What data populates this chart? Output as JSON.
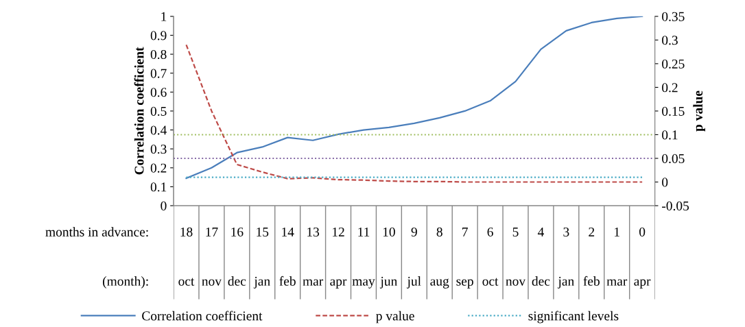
{
  "chart_data": {
    "type": "line",
    "categories": [
      "18\noct",
      "17\nnov",
      "16\ndec",
      "15\njan",
      "14\nfeb",
      "13\nmar",
      "12\napr",
      "11\nmay",
      "10\njun",
      "9\njul",
      "8\naug",
      "7\nsep",
      "6\noct",
      "5\nnov",
      "4\ndec",
      "3\njan",
      "2\nfeb",
      "1\nmar",
      "0\napr"
    ],
    "series": [
      {
        "name": "Correlation coefficient",
        "color": "#4a7ebb",
        "line_style": "solid",
        "values": [
          0.145,
          0.2,
          0.28,
          0.31,
          0.36,
          0.345,
          0.377,
          0.4,
          0.413,
          0.435,
          0.464,
          0.5,
          0.554,
          0.656,
          0.826,
          0.924,
          0.967,
          0.989,
          1.0
        ]
      },
      {
        "name": "p value",
        "color": "#be4b48",
        "line_style": "dashed",
        "axis": "y2",
        "values": [
          0.29,
          0.15,
          0.037,
          0.021,
          0.007,
          0.009,
          0.005,
          0.004,
          0.002,
          0.001,
          0.001,
          0.0,
          0.0,
          0.0,
          0.0,
          0.0,
          0.0,
          0.0,
          0.0
        ]
      },
      {
        "name": "significant levels",
        "color": "#4bacc6",
        "line_style": "dotted",
        "axis": "y2",
        "values": [
          0.01,
          0.01,
          0.01,
          0.01,
          0.01,
          0.01,
          0.01,
          0.01,
          0.01,
          0.01,
          0.01,
          0.01,
          0.01,
          0.01,
          0.01,
          0.01,
          0.01,
          0.01,
          0.01
        ]
      }
    ],
    "ref_lines": [
      {
        "axis": "y2",
        "value": 0.05,
        "color": "#8064a2",
        "line_style": "dotted"
      },
      {
        "axis": "y2",
        "value": 0.1,
        "color": "#9bbb59",
        "line_style": "dotted"
      }
    ],
    "ylabel": "Correlation coefficient",
    "y2label": "p value",
    "ylim": [
      0,
      1
    ],
    "yticks": [
      0,
      0.1,
      0.2,
      0.3,
      0.4,
      0.5,
      0.6,
      0.7,
      0.8,
      0.9,
      1
    ],
    "y2lim": [
      -0.05,
      0.35
    ],
    "y2ticks": [
      -0.05,
      0,
      0.05,
      0.1,
      0.15,
      0.2,
      0.25,
      0.3,
      0.35
    ],
    "annotations": [
      "months in advance:",
      "(month):"
    ],
    "grid": false,
    "legend": "bottom",
    "marker": "none"
  }
}
